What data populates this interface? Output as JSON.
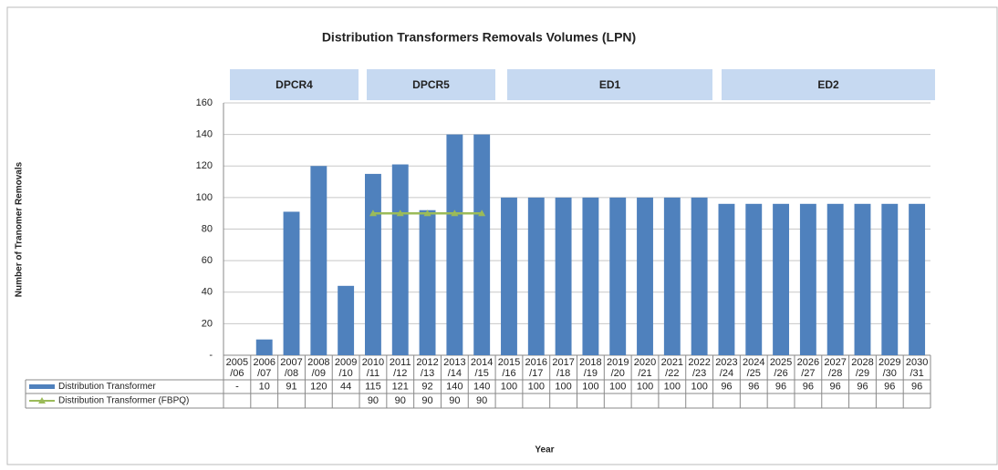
{
  "chart_data": {
    "type": "bar",
    "title": "Distribution Transformers Removals Volumes (LPN)",
    "periods": [
      "DPCR4",
      "DPCR5",
      "ED1",
      "ED2"
    ],
    "ylabel": "Number of Tranomer Removals",
    "xlabel": "Year",
    "categories": [
      "2005/06",
      "2006/07",
      "2007/08",
      "2008/09",
      "2009/10",
      "2010/11",
      "2011/12",
      "2012/13",
      "2013/14",
      "2014/15",
      "2015/16",
      "2016/17",
      "2017/18",
      "2018/19",
      "2019/20",
      "2020/21",
      "2021/22",
      "2022/23",
      "2023/24",
      "2024/25",
      "2025/26",
      "2026/27",
      "2027/28",
      "2028/29",
      "2029/30",
      "2030/31"
    ],
    "series": [
      {
        "name": "Distribution Transformer",
        "type": "bar",
        "color": "#4f81bd",
        "values": [
          0,
          10,
          91,
          120,
          44,
          115,
          121,
          92,
          140,
          140,
          100,
          100,
          100,
          100,
          100,
          100,
          100,
          100,
          96,
          96,
          96,
          96,
          96,
          96,
          96,
          96
        ],
        "value_labels": [
          "-",
          "10",
          "91",
          "120",
          "44",
          "115",
          "121",
          "92",
          "140",
          "140",
          "100",
          "100",
          "100",
          "100",
          "100",
          "100",
          "100",
          "100",
          "96",
          "96",
          "96",
          "96",
          "96",
          "96",
          "96",
          "96"
        ]
      },
      {
        "name": "Distribution Transformer  (FBPQ)",
        "type": "line",
        "color": "#9bbb59",
        "values": [
          null,
          null,
          null,
          null,
          null,
          90,
          90,
          90,
          90,
          90,
          null,
          null,
          null,
          null,
          null,
          null,
          null,
          null,
          null,
          null,
          null,
          null,
          null,
          null,
          null,
          null
        ]
      }
    ],
    "ylim": [
      0,
      160
    ],
    "yticks": [
      {
        "value": 0,
        "label": "-"
      },
      20,
      40,
      60,
      80,
      100,
      120,
      140,
      160
    ],
    "grid": true
  }
}
